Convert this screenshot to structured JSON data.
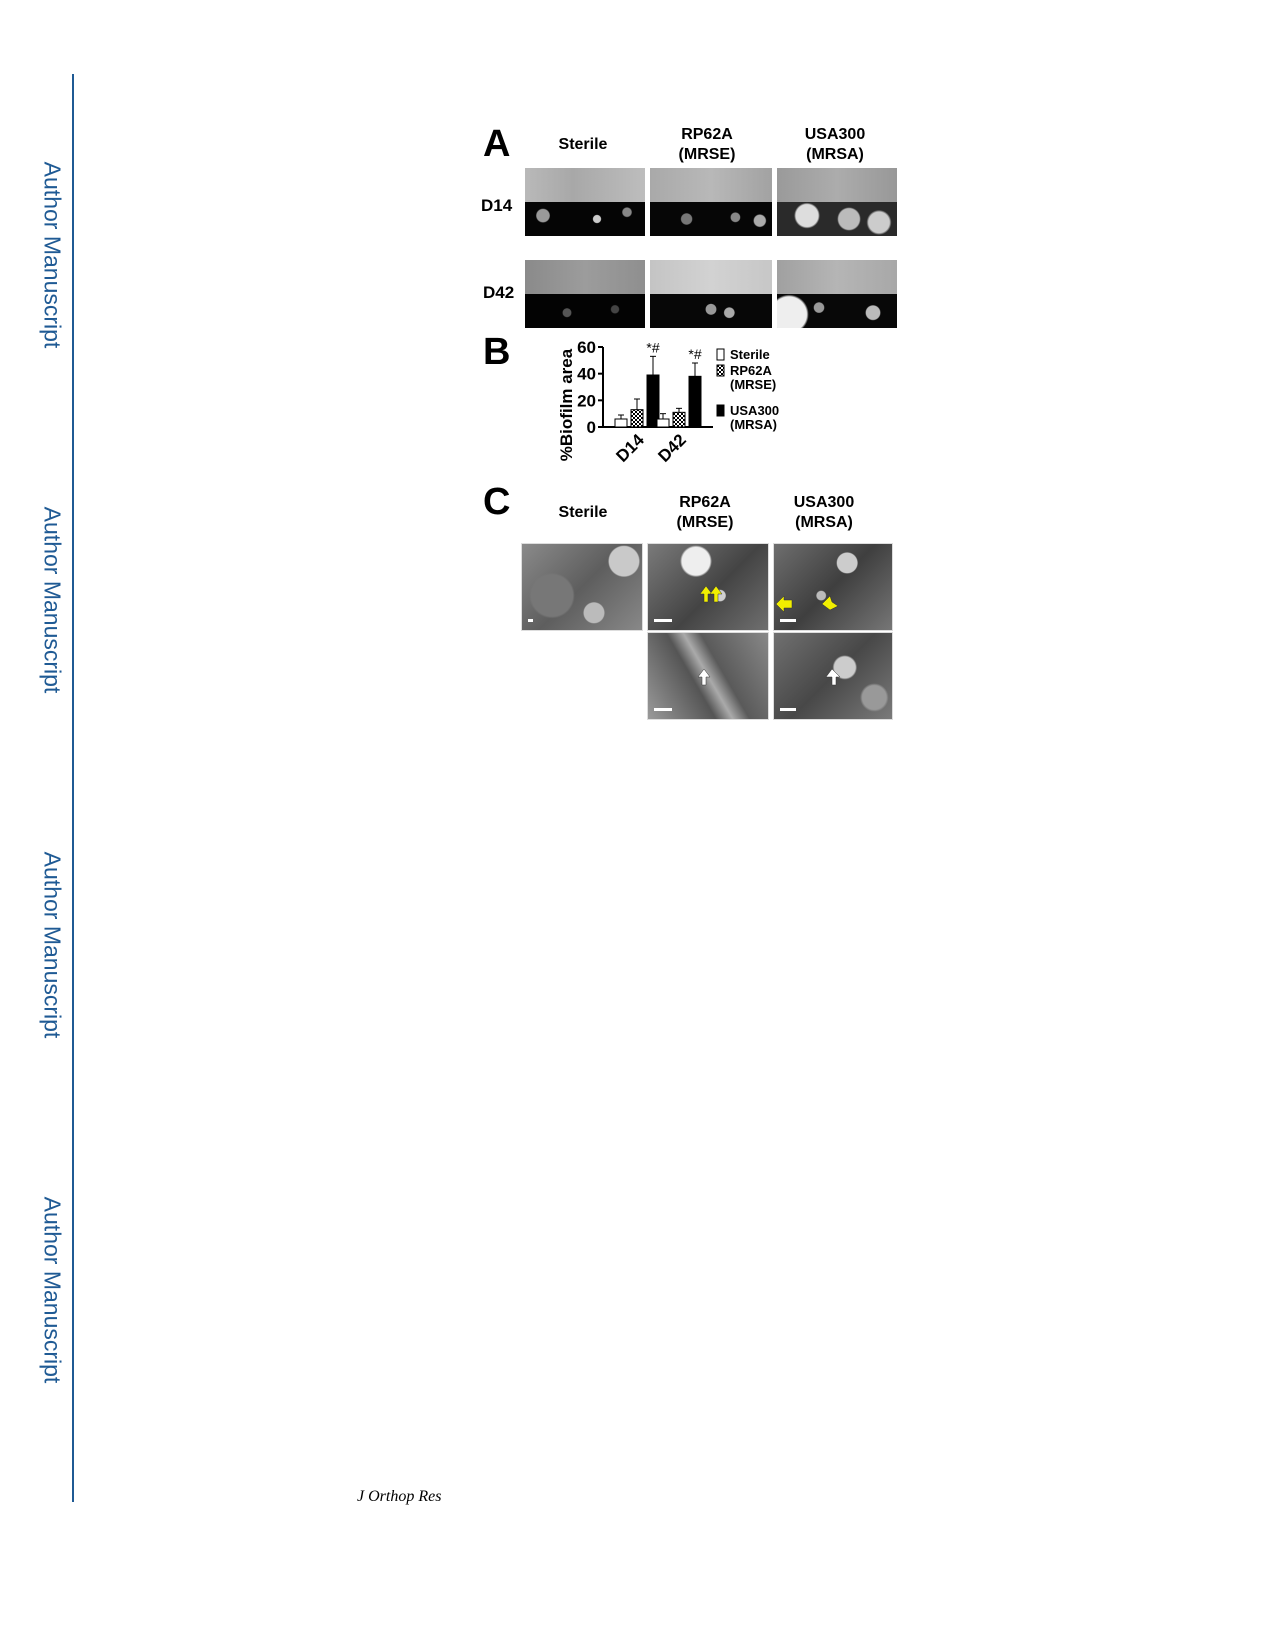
{
  "sidebar": {
    "label": "Author Manuscript"
  },
  "footer": {
    "journal": "J Orthop Res"
  },
  "figure": {
    "panels": {
      "a": "A",
      "b": "B",
      "c": "C"
    },
    "columns": [
      {
        "line1": "Sterile",
        "line2": ""
      },
      {
        "line1": "RP62A",
        "line2": "(MRSE)"
      },
      {
        "line1": "USA300",
        "line2": "(MRSA)"
      }
    ],
    "rows": [
      "D14",
      "D42"
    ],
    "significance": "*#"
  },
  "chart_data": {
    "type": "bar",
    "ylabel": "%Biofilm area",
    "xlabel": "",
    "ylim": [
      0,
      60
    ],
    "yticks": [
      "0",
      "20",
      "40",
      "60"
    ],
    "categories": [
      "D14",
      "D42"
    ],
    "series": [
      {
        "name": "Sterile",
        "values": [
          6,
          6
        ],
        "errors": [
          3,
          4
        ],
        "fill": "#ffffff"
      },
      {
        "name": "RP62A (MRSE)",
        "values": [
          13,
          11
        ],
        "errors": [
          8,
          3
        ],
        "fill": "checker"
      },
      {
        "name": "USA300 (MRSA)",
        "values": [
          39,
          38
        ],
        "errors": [
          14,
          10
        ],
        "fill": "#000000"
      }
    ],
    "legend": {
      "placement": "right",
      "entries": [
        {
          "line1": "Sterile",
          "line2": ""
        },
        {
          "line1": "RP62A",
          "line2": "(MRSE)"
        },
        {
          "line1": "USA300",
          "line2": "(MRSA)"
        }
      ]
    },
    "annotations": [
      "*#",
      "*#"
    ]
  }
}
